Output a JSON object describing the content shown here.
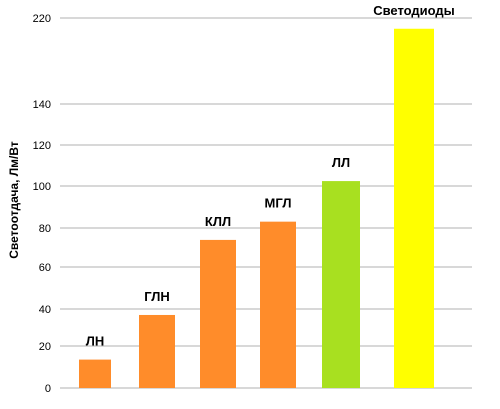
{
  "chart_data": {
    "type": "bar",
    "ylabel": "Светоотдача, Лм/Вт",
    "y_ticks": [
      "0",
      "20",
      "40",
      "60",
      "80",
      "100",
      "120",
      "140",
      "220"
    ],
    "bars": [
      {
        "label": "ЛН",
        "value": 14,
        "color": "#ff8c2a"
      },
      {
        "label": "ГЛН",
        "value": 36,
        "color": "#ff8c2a"
      },
      {
        "label": "КЛЛ",
        "value": 73,
        "color": "#ff8c2a"
      },
      {
        "label": "МГЛ",
        "value": 82,
        "color": "#ff8c2a"
      },
      {
        "label": "ЛЛ",
        "value": 102,
        "color": "#a8e020"
      },
      {
        "label": "Светодиоды",
        "value": 210,
        "color": "#ffff00"
      }
    ],
    "grid": true,
    "legend": "none"
  }
}
